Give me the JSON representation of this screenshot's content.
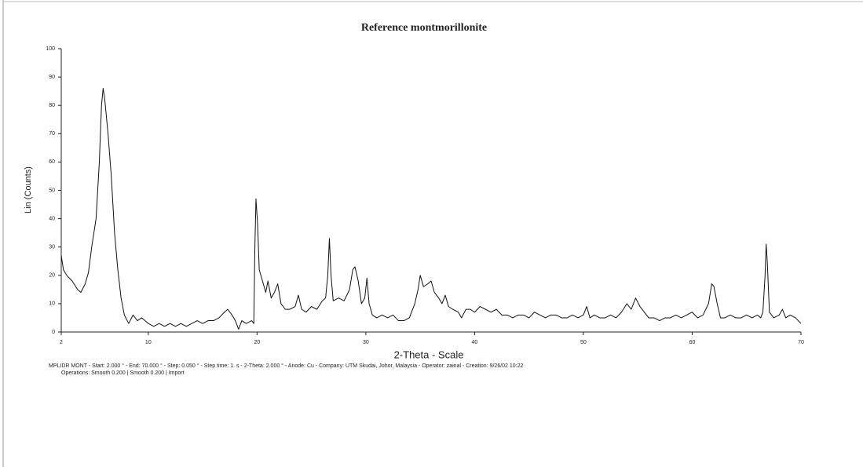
{
  "chart_data": {
    "type": "line",
    "title": "Reference montmorillonite",
    "ylabel": "Lin (Counts)",
    "xlabel": "2-Theta - Scale",
    "footer_lines": [
      "MPLIDR MONT - Start: 2.000 ° - End: 70.000 ° - Step: 0.050 ° - Step time: 1. s - 2-Theta: 2.000 ° - Anode: Cu - Company: UTM Skudai, Johor, Malaysia - Operator: zainal - Creation: 9/26/02 10:22",
      "Operations: Smooth 0.200 | Smooth 0.200 | Import"
    ],
    "color": "#111111",
    "xlim": [
      2,
      70
    ],
    "ylim": [
      0,
      100
    ],
    "xticks": [
      2,
      10,
      20,
      30,
      40,
      50,
      60,
      70
    ],
    "yticks": [
      0,
      10,
      20,
      30,
      40,
      50,
      60,
      70,
      80,
      90,
      100
    ],
    "x": [
      2,
      2.2,
      2.5,
      3,
      3.5,
      3.8,
      4.2,
      4.5,
      4.8,
      5.2,
      5.5,
      5.7,
      5.85,
      6,
      6.3,
      6.6,
      6.9,
      7.2,
      7.5,
      7.8,
      8.2,
      8.6,
      9,
      9.4,
      10,
      10.5,
      11,
      11.5,
      12,
      12.5,
      13,
      13.5,
      14,
      14.5,
      15,
      15.5,
      16,
      16.5,
      17,
      17.3,
      17.7,
      18,
      18.3,
      18.6,
      19,
      19.5,
      19.7,
      19.8,
      19.9,
      20.05,
      20.2,
      20.5,
      20.8,
      21,
      21.3,
      21.6,
      21.9,
      22.2,
      22.6,
      23,
      23.5,
      23.8,
      24.1,
      24.5,
      25,
      25.5,
      26,
      26.3,
      26.5,
      26.65,
      26.8,
      27,
      27.5,
      28,
      28.5,
      28.8,
      29,
      29.3,
      29.6,
      29.9,
      30.1,
      30.3,
      30.6,
      31,
      31.5,
      32,
      32.5,
      33,
      33.5,
      34,
      34.5,
      34.8,
      35,
      35.3,
      35.7,
      36,
      36.3,
      36.7,
      37,
      37.3,
      37.6,
      38,
      38.5,
      38.8,
      39.2,
      39.6,
      40,
      40.5,
      41,
      41.5,
      42,
      42.5,
      43,
      43.5,
      44,
      44.5,
      45,
      45.5,
      46,
      46.5,
      47,
      47.5,
      48,
      48.5,
      49,
      49.5,
      50,
      50.3,
      50.6,
      51,
      51.5,
      52,
      52.5,
      53,
      53.5,
      54,
      54.4,
      54.8,
      55.2,
      55.6,
      56,
      56.5,
      57,
      57.5,
      58,
      58.5,
      59,
      59.5,
      60,
      60.5,
      61,
      61.5,
      61.8,
      62,
      62.3,
      62.6,
      63,
      63.5,
      64,
      64.5,
      65,
      65.5,
      66,
      66.3,
      66.5,
      66.7,
      66.8,
      66.9,
      67.1,
      67.5,
      68,
      68.3,
      68.6,
      69,
      69.5,
      70
    ],
    "values": [
      27,
      22,
      20,
      18,
      15,
      14,
      17,
      21,
      30,
      40,
      60,
      80,
      86,
      82,
      70,
      55,
      35,
      22,
      12,
      6,
      3,
      6,
      4,
      5,
      3,
      2,
      3,
      2,
      3,
      2,
      3,
      2,
      3,
      4,
      3,
      4,
      4,
      5,
      7,
      8,
      6,
      4,
      1,
      4,
      3,
      4,
      3,
      30,
      47,
      38,
      22,
      18,
      14,
      18,
      12,
      14,
      17,
      10,
      8,
      8,
      9,
      13,
      8,
      7,
      9,
      8,
      11,
      12,
      20,
      33,
      20,
      11,
      12,
      11,
      15,
      22,
      23,
      18,
      10,
      12,
      19,
      10,
      6,
      5,
      6,
      5,
      6,
      4,
      4,
      5,
      10,
      15,
      20,
      16,
      17,
      18,
      14,
      12,
      10,
      13,
      9,
      8,
      7,
      5,
      8,
      8,
      7,
      9,
      8,
      7,
      8,
      6,
      6,
      5,
      6,
      6,
      5,
      7,
      6,
      5,
      6,
      6,
      5,
      5,
      6,
      5,
      6,
      9,
      5,
      6,
      5,
      5,
      6,
      5,
      7,
      10,
      8,
      12,
      9,
      7,
      5,
      5,
      4,
      5,
      5,
      6,
      5,
      6,
      7,
      5,
      6,
      10,
      17,
      16,
      10,
      5,
      5,
      6,
      5,
      5,
      6,
      5,
      6,
      5,
      7,
      20,
      31,
      25,
      7,
      5,
      6,
      8,
      5,
      6,
      5,
      3
    ]
  }
}
